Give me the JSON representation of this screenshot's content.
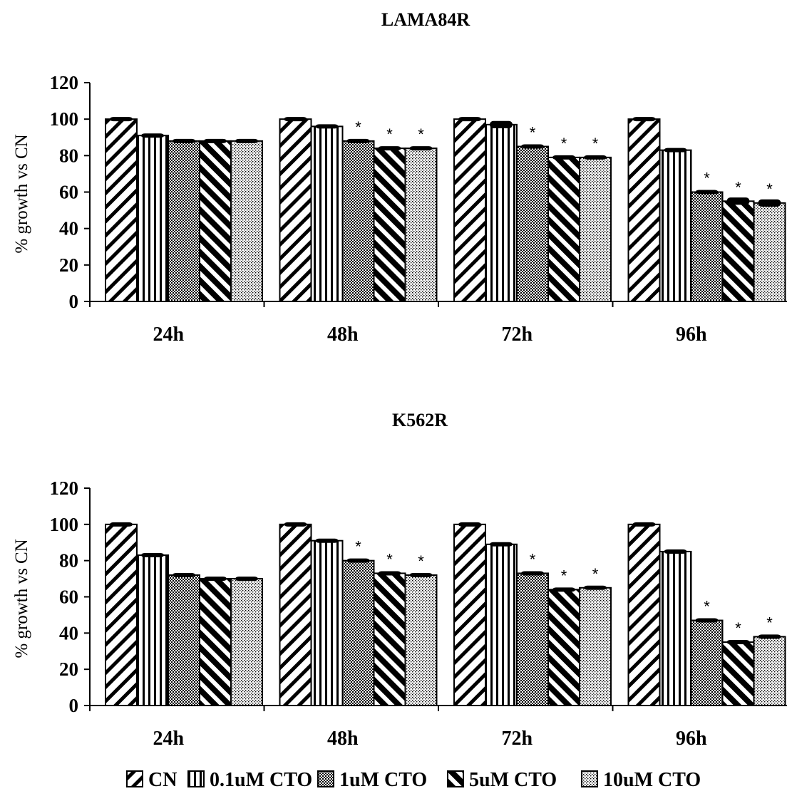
{
  "chart_data": [
    {
      "type": "bar",
      "title": "LAMA84R",
      "ylabel": "% growth vs CN",
      "xlabel": "",
      "categories": [
        "24h",
        "48h",
        "72h",
        "96h"
      ],
      "ylim": [
        0,
        120
      ],
      "yticks": [
        "0",
        "20",
        "40",
        "60",
        "80",
        "100",
        "120"
      ],
      "series": [
        {
          "name": "CN",
          "values": [
            100,
            100,
            100,
            100
          ],
          "error": [
            1,
            1,
            1,
            1
          ]
        },
        {
          "name": "0.1uM CTO",
          "values": [
            91,
            96,
            97,
            83
          ],
          "error": [
            1,
            1,
            2,
            1
          ]
        },
        {
          "name": "1uM CTO",
          "values": [
            88,
            88,
            85,
            60
          ],
          "error": [
            1,
            1,
            1,
            1
          ]
        },
        {
          "name": "5uM CTO",
          "values": [
            88,
            84,
            79,
            55
          ],
          "error": [
            1,
            1,
            1,
            2
          ]
        },
        {
          "name": "10uM CTO",
          "values": [
            88,
            84,
            79,
            54
          ],
          "error": [
            1,
            1,
            1,
            2
          ]
        }
      ],
      "significance_marker": "*",
      "significant": [
        [
          false,
          false,
          false,
          false
        ],
        [
          false,
          false,
          false,
          false
        ],
        [
          false,
          true,
          true,
          true
        ],
        [
          false,
          true,
          true,
          true
        ],
        [
          false,
          true,
          true,
          true
        ]
      ]
    },
    {
      "type": "bar",
      "title": "K562R",
      "ylabel": "% growth vs CN",
      "xlabel": "",
      "categories": [
        "24h",
        "48h",
        "72h",
        "96h"
      ],
      "ylim": [
        0,
        120
      ],
      "yticks": [
        "0",
        "20",
        "40",
        "60",
        "80",
        "100",
        "120"
      ],
      "series": [
        {
          "name": "CN",
          "values": [
            100,
            100,
            100,
            100
          ],
          "error": [
            1,
            1,
            1,
            1
          ]
        },
        {
          "name": "0.1uM CTO",
          "values": [
            83,
            91,
            89,
            85
          ],
          "error": [
            1,
            1,
            1,
            1
          ]
        },
        {
          "name": "1uM CTO",
          "values": [
            72,
            80,
            73,
            47
          ],
          "error": [
            1,
            1,
            1,
            1
          ]
        },
        {
          "name": "5uM CTO",
          "values": [
            70,
            73,
            64,
            35
          ],
          "error": [
            1,
            1,
            1,
            1
          ]
        },
        {
          "name": "10uM CTO",
          "values": [
            70,
            72,
            65,
            38
          ],
          "error": [
            1,
            1,
            1,
            1
          ]
        }
      ],
      "significance_marker": "*",
      "significant": [
        [
          false,
          false,
          false,
          false
        ],
        [
          false,
          false,
          false,
          false
        ],
        [
          false,
          true,
          true,
          true
        ],
        [
          false,
          true,
          true,
          true
        ],
        [
          false,
          true,
          true,
          true
        ]
      ]
    }
  ],
  "legend": {
    "placement": "bottom",
    "items": [
      {
        "label": "CN",
        "pattern": "diag-back"
      },
      {
        "label": "0.1uM CTO",
        "pattern": "vertical"
      },
      {
        "label": "1uM CTO",
        "pattern": "checker"
      },
      {
        "label": "5uM CTO",
        "pattern": "diag-fwd-heavy"
      },
      {
        "label": "10uM CTO",
        "pattern": "dots"
      }
    ]
  }
}
